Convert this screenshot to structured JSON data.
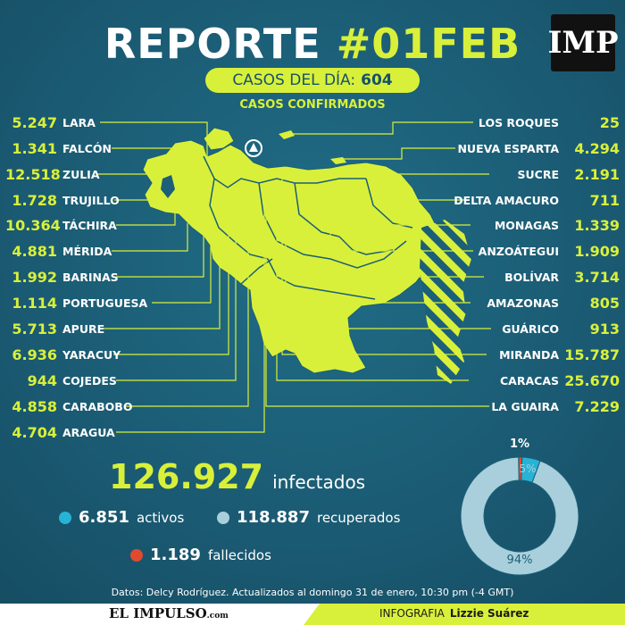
{
  "header": {
    "title_main": "REPORTE",
    "title_hash": "#01FEB",
    "logo": "IMP",
    "cases_label": "CASOS DEL DÍA:",
    "cases_value": "604",
    "subtitle": "CASOS CONFIRMADOS"
  },
  "left_states": [
    {
      "value": "5.247",
      "name": "LARA"
    },
    {
      "value": "1.341",
      "name": "FALCÓN"
    },
    {
      "value": "12.518",
      "name": "ZULIA"
    },
    {
      "value": "1.728",
      "name": "TRUJILLO"
    },
    {
      "value": "10.364",
      "name": "TÁCHIRA"
    },
    {
      "value": "4.881",
      "name": "MÉRIDA"
    },
    {
      "value": "1.992",
      "name": "BARINAS"
    },
    {
      "value": "1.114",
      "name": "PORTUGUESA"
    },
    {
      "value": "5.713",
      "name": "APURE"
    },
    {
      "value": "6.936",
      "name": "YARACUY"
    },
    {
      "value": "944",
      "name": "COJEDES"
    },
    {
      "value": "4.858",
      "name": "CARABOBO"
    },
    {
      "value": "4.704",
      "name": "ARAGUA"
    }
  ],
  "right_states": [
    {
      "value": "25",
      "name": "LOS ROQUES"
    },
    {
      "value": "4.294",
      "name": "NUEVA ESPARTA"
    },
    {
      "value": "2.191",
      "name": "SUCRE"
    },
    {
      "value": "711",
      "name": "DELTA AMACURO"
    },
    {
      "value": "1.339",
      "name": "MONAGAS"
    },
    {
      "value": "1.909",
      "name": "ANZOÁTEGUI"
    },
    {
      "value": "3.714",
      "name": "BOLÍVAR"
    },
    {
      "value": "805",
      "name": "AMAZONAS"
    },
    {
      "value": "913",
      "name": "GUÁRICO"
    },
    {
      "value": "15.787",
      "name": "MIRANDA"
    },
    {
      "value": "25.670",
      "name": "CARACAS"
    },
    {
      "value": "7.229",
      "name": "LA GUAIRA"
    }
  ],
  "totals": {
    "infected_value": "126.927",
    "infected_label": "infectados",
    "active_value": "6.851",
    "active_label": "activos",
    "recovered_value": "118.887",
    "recovered_label": "recuperados",
    "deceased_value": "1.189",
    "deceased_label": "fallecidos"
  },
  "donut": {
    "deceased_pct_label": "1%",
    "active_pct_label": "5%",
    "recovered_pct_label": "94%",
    "deceased_fraction": 0.01,
    "active_fraction": 0.05,
    "recovered_fraction": 0.94
  },
  "colors": {
    "accent": "#d9f03a",
    "active": "#27b3d6",
    "recovered": "#a9cfdc",
    "deceased": "#e04a2f",
    "background": "#1b5f78"
  },
  "footer": {
    "source": "Datos: Delcy Rodríguez. Actualizados al domingo 31 de enero, 10:30 pm (-4 GMT)",
    "brand": "EL IMPULSO",
    "brand_suffix": ".com",
    "credit_label": "INFOGRAFIA",
    "credit_name": "Lizzie Suárez"
  }
}
